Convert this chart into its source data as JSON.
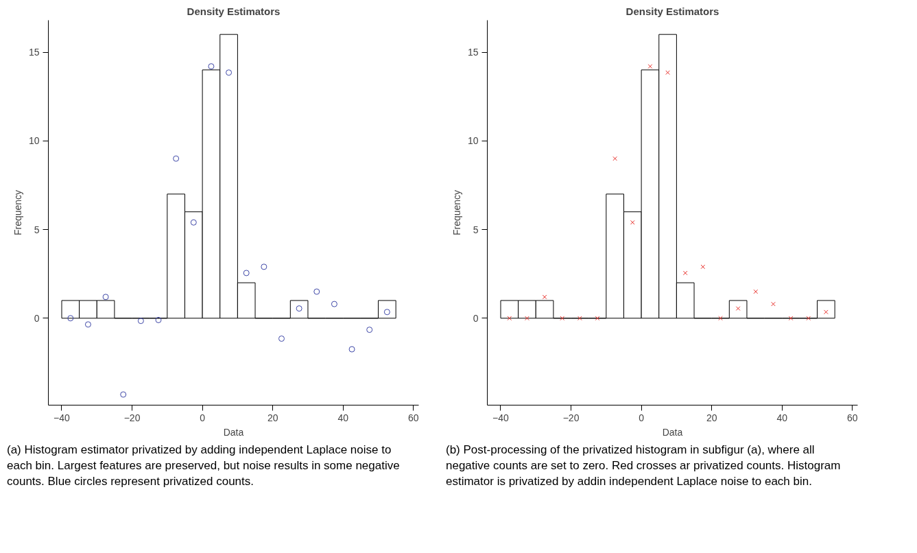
{
  "chart_data": [
    {
      "type": "histogram",
      "title": "Density Estimators",
      "xlabel": "Data",
      "ylabel": "Frequency",
      "color": "#000000",
      "bins": [
        -40,
        -35,
        -30,
        -25,
        -20,
        -15,
        -10,
        -5,
        0,
        5,
        10,
        15,
        20,
        25,
        30,
        35,
        40,
        45,
        50,
        55
      ],
      "values": [
        1,
        1,
        1,
        0,
        0,
        0,
        7,
        6,
        14,
        16,
        2,
        0,
        0,
        1,
        0,
        0,
        0,
        0,
        1
      ],
      "series": [
        {
          "type": "scatter",
          "marker": "circle",
          "color": "#3f48a8",
          "x": [
            -37.5,
            -32.5,
            -27.5,
            -22.5,
            -17.5,
            -12.5,
            -7.5,
            -2.5,
            2.5,
            7.5,
            12.5,
            17.5,
            22.5,
            27.5,
            32.5,
            37.5,
            42.5,
            47.5,
            52.5
          ],
          "values": [
            0.0,
            -0.35,
            1.2,
            -4.3,
            -0.15,
            -0.1,
            9.0,
            5.4,
            14.2,
            13.85,
            2.55,
            2.9,
            -1.15,
            0.55,
            1.5,
            0.8,
            -1.75,
            -0.65,
            0.35
          ]
        }
      ],
      "xlim": [
        -43.8,
        61.5
      ],
      "ylim": [
        -4.9,
        16.8
      ],
      "xticks": [
        -40,
        -20,
        0,
        20,
        40,
        60
      ],
      "yticks": [
        0,
        5,
        10,
        15
      ],
      "annotations": [
        "(a) Histogram estimator privatized by adding independent Laplace noise to each bin. Largest features are preserved, but noise results in some negative counts. Blue circles represent privatized counts."
      ]
    },
    {
      "type": "histogram",
      "title": "Density Estimators",
      "xlabel": "Data",
      "ylabel": "Frequency",
      "color": "#000000",
      "bins": [
        -40,
        -35,
        -30,
        -25,
        -20,
        -15,
        -10,
        -5,
        0,
        5,
        10,
        15,
        20,
        25,
        30,
        35,
        40,
        45,
        50,
        55
      ],
      "values": [
        1,
        1,
        1,
        0,
        0,
        0,
        7,
        6,
        14,
        16,
        2,
        0,
        0,
        1,
        0,
        0,
        0,
        0,
        1
      ],
      "series": [
        {
          "type": "scatter",
          "marker": "cross",
          "color": "#e8312c",
          "x": [
            -37.5,
            -32.5,
            -27.5,
            -22.5,
            -17.5,
            -12.5,
            -7.5,
            -2.5,
            2.5,
            7.5,
            12.5,
            17.5,
            22.5,
            27.5,
            32.5,
            37.5,
            42.5,
            47.5,
            52.5
          ],
          "values": [
            0,
            0,
            1.2,
            0,
            0,
            0,
            9.0,
            5.4,
            14.2,
            13.85,
            2.55,
            2.9,
            0,
            0.55,
            1.5,
            0.8,
            0,
            0,
            0.35
          ]
        }
      ],
      "xlim": [
        -43.8,
        61.5
      ],
      "ylim": [
        -4.9,
        16.8
      ],
      "xticks": [
        -40,
        -20,
        0,
        20,
        40,
        60
      ],
      "yticks": [
        0,
        5,
        10,
        15
      ],
      "annotations": [
        "(b) Post-processing of the privatized histogram in subfigur (a), where all negative counts are set to zero. Red crosses ar privatized counts. Histogram estimator is privatized by addin independent Laplace noise to each bin."
      ]
    }
  ]
}
